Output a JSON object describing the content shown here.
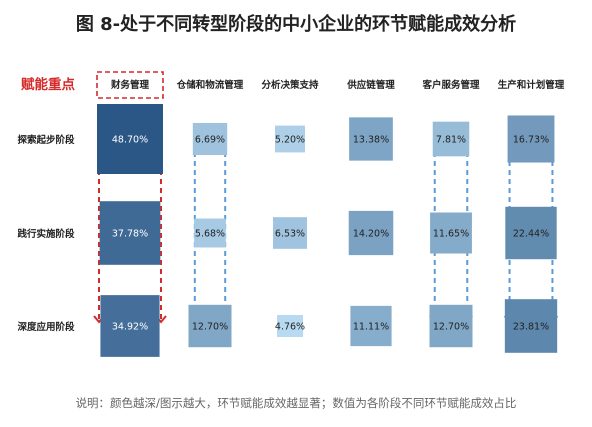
{
  "title": "图 8-处于不同转型阶段的中小企业的环节赋能成效分析",
  "focus_label": "赋能重点",
  "caption": "说明：颜色越深/图示越大，环节赋能成效越显著；数值为各阶段不同环节赋能成效占比",
  "colors": {
    "focus": "#d42a2a",
    "arrow": "#5b9bd5",
    "dark": "#2e5d8f",
    "light": "#a9d3ee"
  },
  "chart_data": {
    "type": "heatmap",
    "title": "图 8-处于不同转型阶段的中小企业的环节赋能成效分析",
    "columns": [
      "财务管理",
      "仓储和物流管理",
      "分析决策支持",
      "供应链管理",
      "客户服务管理",
      "生产和计划管理"
    ],
    "rows": [
      "探索起步阶段",
      "践行实施阶段",
      "深度应用阶段"
    ],
    "unit": "%",
    "values": [
      [
        48.7,
        6.69,
        5.2,
        13.38,
        7.81,
        16.73
      ],
      [
        37.78,
        5.68,
        6.53,
        14.2,
        11.65,
        22.44
      ],
      [
        34.92,
        12.7,
        4.76,
        11.11,
        12.7,
        23.81
      ]
    ],
    "value_labels": [
      [
        "48.70%",
        "6.69%",
        "5.20%",
        "13.38%",
        "7.81%",
        "16.73%"
      ],
      [
        "37.78%",
        "5.68%",
        "6.53%",
        "14.20%",
        "11.65%",
        "22.44%"
      ],
      [
        "34.92%",
        "12.70%",
        "4.76%",
        "11.11%",
        "12.70%",
        "23.81%"
      ]
    ],
    "highlighted_column": "财务管理",
    "arrow_columns": [
      "财务管理",
      "仓储和物流管理",
      "客户服务管理",
      "生产和计划管理"
    ],
    "arrow_colors": {
      "财务管理": "#d42a2a",
      "仓储和物流管理": "#5b9bd5",
      "客户服务管理": "#5b9bd5",
      "生产和计划管理": "#5b9bd5"
    }
  }
}
